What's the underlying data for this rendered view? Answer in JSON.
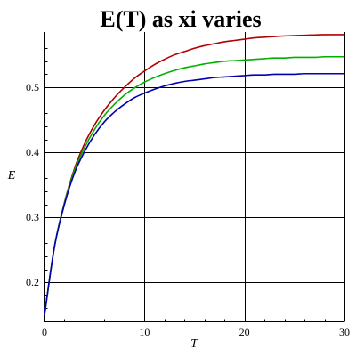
{
  "chart_data": {
    "type": "line",
    "title": "E(T) as xi varies",
    "xlabel": "T",
    "ylabel": "E",
    "xlim": [
      0,
      30
    ],
    "ylim": [
      0.14,
      0.585
    ],
    "x_ticks": [
      0,
      10,
      20,
      30
    ],
    "x_tick_labels": [
      "0",
      "10",
      "20",
      "30"
    ],
    "y_ticks": [
      0.2,
      0.3,
      0.4,
      0.5
    ],
    "y_tick_labels": [
      "0.2",
      "0.3",
      "0.4",
      "0.5"
    ],
    "grid": true,
    "legend": "none",
    "colors": {
      "axis": "#000000",
      "grid": "#000000"
    },
    "x": [
      0,
      1,
      2,
      3,
      4,
      5,
      6,
      7,
      8,
      9,
      10,
      11,
      12,
      13,
      14,
      15,
      16,
      17,
      18,
      19,
      20,
      21,
      22,
      23,
      24,
      25,
      26,
      27,
      28,
      29,
      30
    ],
    "series": [
      {
        "color": "#b00000",
        "values": [
          0.15,
          0.255,
          0.323,
          0.375,
          0.413,
          0.442,
          0.465,
          0.484,
          0.5,
          0.514,
          0.525,
          0.535,
          0.543,
          0.55,
          0.555,
          0.56,
          0.564,
          0.567,
          0.57,
          0.572,
          0.574,
          0.576,
          0.577,
          0.578,
          0.579,
          0.5795,
          0.58,
          0.5805,
          0.581,
          0.581,
          0.581
        ]
      },
      {
        "color": "#00b000",
        "values": [
          0.15,
          0.255,
          0.322,
          0.372,
          0.407,
          0.435,
          0.457,
          0.474,
          0.488,
          0.499,
          0.508,
          0.515,
          0.521,
          0.526,
          0.53,
          0.533,
          0.536,
          0.538,
          0.54,
          0.541,
          0.542,
          0.543,
          0.544,
          0.545,
          0.545,
          0.546,
          0.546,
          0.546,
          0.547,
          0.547,
          0.547
        ]
      },
      {
        "color": "#0000b0",
        "values": [
          0.15,
          0.255,
          0.32,
          0.368,
          0.401,
          0.427,
          0.447,
          0.462,
          0.474,
          0.484,
          0.491,
          0.497,
          0.502,
          0.506,
          0.509,
          0.511,
          0.513,
          0.515,
          0.516,
          0.517,
          0.518,
          0.519,
          0.519,
          0.52,
          0.52,
          0.52,
          0.521,
          0.521,
          0.521,
          0.521,
          0.521
        ]
      }
    ]
  }
}
